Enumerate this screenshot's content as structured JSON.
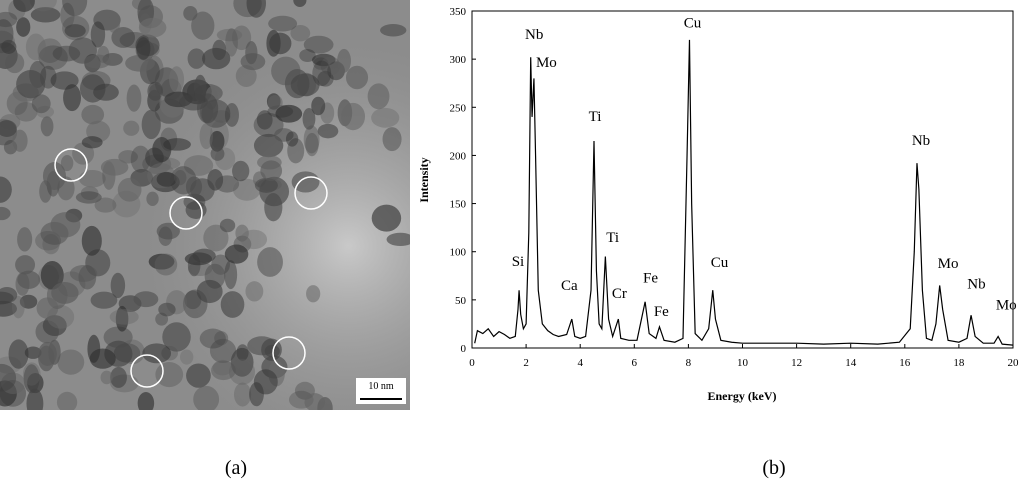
{
  "image_panel": {
    "scale_bar": "10 nm",
    "caption": "(a)"
  },
  "chart_data": {
    "type": "line",
    "caption": "(b)",
    "x_label": "Energy (keV)",
    "y_label": "Intensity",
    "xlim": [
      0,
      20
    ],
    "xticks": [
      0,
      2,
      4,
      6,
      8,
      10,
      12,
      14,
      16,
      18,
      20
    ],
    "ylim": [
      0,
      350
    ],
    "yticks": [
      0,
      50,
      100,
      150,
      200,
      250,
      300,
      350
    ],
    "grid": false,
    "x": [
      0.1,
      0.2,
      0.4,
      0.6,
      0.8,
      1.0,
      1.2,
      1.4,
      1.6,
      1.7,
      1.74,
      1.8,
      1.9,
      2.0,
      2.1,
      2.17,
      2.22,
      2.29,
      2.35,
      2.45,
      2.6,
      2.8,
      3.0,
      3.2,
      3.5,
      3.69,
      3.8,
      4.0,
      4.2,
      4.4,
      4.51,
      4.6,
      4.7,
      4.8,
      4.93,
      5.05,
      5.2,
      5.41,
      5.5,
      5.8,
      6.1,
      6.4,
      6.55,
      6.8,
      6.93,
      7.1,
      7.5,
      7.8,
      7.95,
      8.04,
      8.12,
      8.25,
      8.5,
      8.75,
      8.9,
      9.0,
      9.2,
      9.6,
      10,
      11,
      12,
      13,
      14,
      15,
      15.8,
      16.2,
      16.35,
      16.45,
      16.52,
      16.65,
      16.8,
      17.0,
      17.15,
      17.29,
      17.4,
      17.6,
      18.0,
      18.3,
      18.45,
      18.6,
      18.9,
      19.3,
      19.45,
      19.6,
      20
    ],
    "series": [
      {
        "color": "#000000",
        "values": [
          5,
          18,
          15,
          20,
          12,
          17,
          14,
          10,
          12,
          40,
          60,
          35,
          20,
          25,
          120,
          302,
          240,
          280,
          200,
          60,
          25,
          18,
          14,
          12,
          14,
          30,
          12,
          10,
          12,
          60,
          215,
          80,
          25,
          20,
          95,
          30,
          12,
          30,
          10,
          8,
          8,
          48,
          15,
          10,
          22,
          8,
          6,
          10,
          200,
          320,
          150,
          15,
          8,
          20,
          60,
          30,
          8,
          6,
          5,
          5,
          5,
          4,
          5,
          4,
          6,
          20,
          100,
          192,
          165,
          60,
          10,
          8,
          25,
          65,
          40,
          8,
          6,
          10,
          34,
          12,
          5,
          5,
          12,
          4,
          3
        ]
      }
    ],
    "annotations": [
      {
        "text": "Si",
        "x": 1.7,
        "y": 85
      },
      {
        "text": "Nb",
        "x": 2.3,
        "y": 321
      },
      {
        "text": "Mo",
        "x": 2.75,
        "y": 292
      },
      {
        "text": "Ca",
        "x": 3.6,
        "y": 60
      },
      {
        "text": "Ti",
        "x": 4.55,
        "y": 236
      },
      {
        "text": "Ti",
        "x": 5.2,
        "y": 110
      },
      {
        "text": "Cr",
        "x": 5.45,
        "y": 52
      },
      {
        "text": "Fe",
        "x": 6.6,
        "y": 68
      },
      {
        "text": "Fe",
        "x": 7.0,
        "y": 33
      },
      {
        "text": "Cu",
        "x": 8.15,
        "y": 333
      },
      {
        "text": "Cu",
        "x": 9.15,
        "y": 84
      },
      {
        "text": "Nb",
        "x": 16.6,
        "y": 211
      },
      {
        "text": "Mo",
        "x": 17.6,
        "y": 83
      },
      {
        "text": "Nb",
        "x": 18.65,
        "y": 62
      },
      {
        "text": "Mo",
        "x": 19.75,
        "y": 40
      }
    ]
  }
}
